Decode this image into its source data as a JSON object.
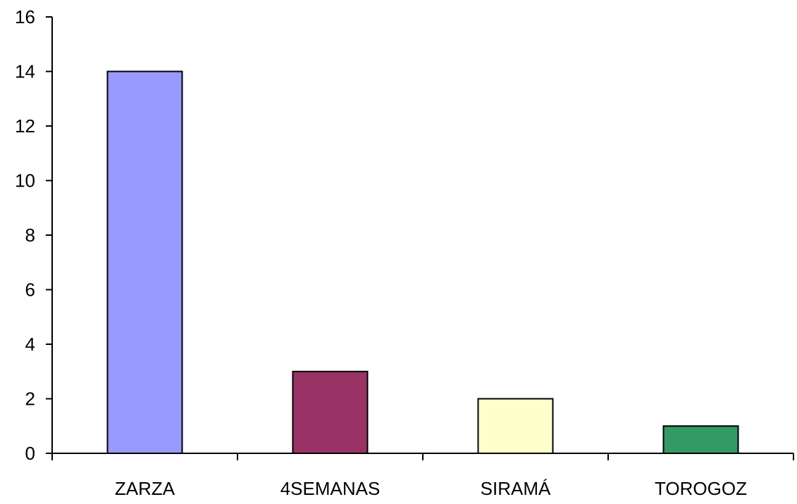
{
  "chart_data": {
    "type": "bar",
    "categories": [
      "ZARZA",
      "4SEMANAS",
      "SIRAMÁ",
      "TOROGOZ"
    ],
    "values": [
      14,
      3,
      2,
      1
    ],
    "colors": [
      "#9999ff",
      "#993366",
      "#ffffcc",
      "#339966"
    ],
    "yticks": [
      "0",
      "2",
      "4",
      "6",
      "8",
      "10",
      "12",
      "14",
      "16"
    ],
    "ylim": [
      0,
      16
    ],
    "grid": false,
    "legend": "none",
    "title": "",
    "xlabel": "",
    "ylabel": ""
  }
}
